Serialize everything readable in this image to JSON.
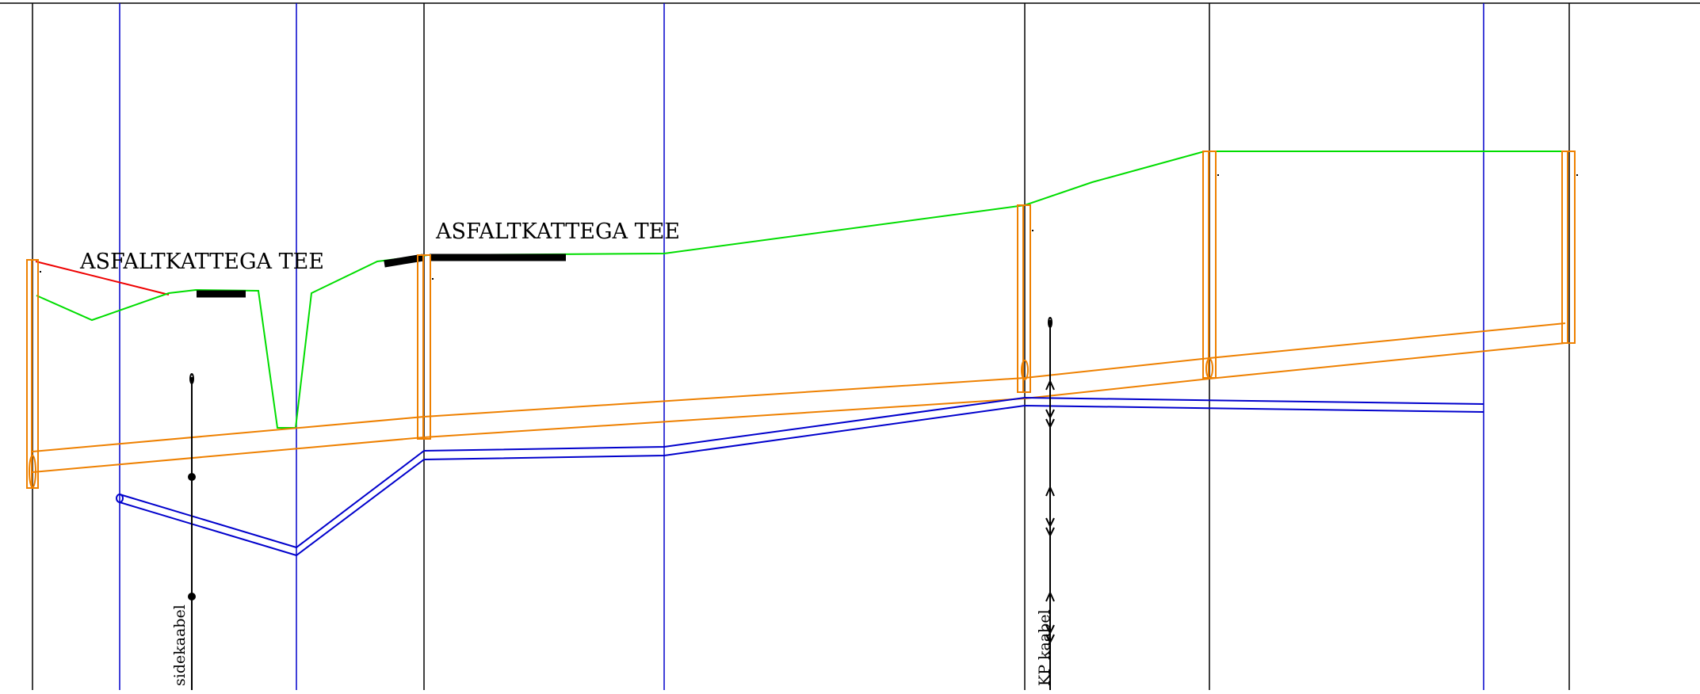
{
  "labels": {
    "surface_left": "ASFALTKATTEGA TEE",
    "surface_right": "ASFALTKATTEGA TEE",
    "cable_left": "sidekaabel",
    "cable_right": "KP kaabel"
  },
  "colors": {
    "grid_black": "#000000",
    "grid_blue": "#0000cc",
    "ground": "#00dd00",
    "old_surface": "#ee0000",
    "pipe": "#ee8000",
    "second_pipe": "#0000cc",
    "asphalt": "#000000",
    "cable": "#000000"
  }
}
